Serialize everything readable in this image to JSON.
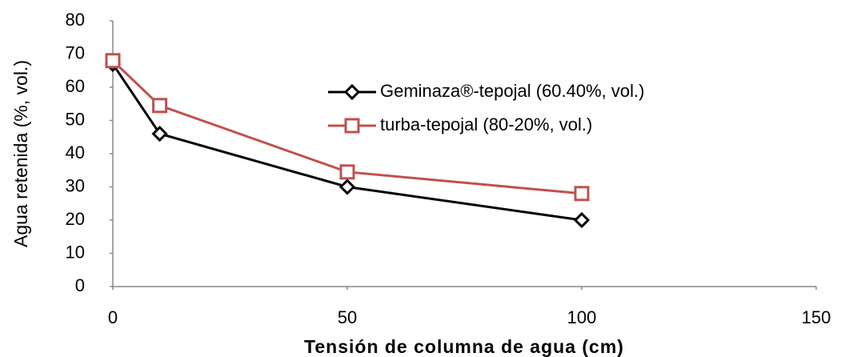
{
  "chart_data": {
    "type": "line",
    "x_label": "Tensión de columna de agua (cm)",
    "y_label": "Agua retenida (%, vol.)",
    "series": [
      {
        "name": "Geminaza®-tepojal (60.40%, vol.)",
        "color": "#000000",
        "marker": "diamond",
        "x": [
          0,
          10,
          50,
          100
        ],
        "values": [
          67,
          46,
          30,
          20
        ]
      },
      {
        "name": "turba-tepojal (80-20%, vol.)",
        "color": "#c0504d",
        "marker": "square",
        "x": [
          0,
          10,
          50,
          100
        ],
        "values": [
          68,
          54.5,
          34.5,
          28
        ]
      }
    ],
    "xlim": [
      0,
      150
    ],
    "xticks": [
      0,
      50,
      100,
      150
    ],
    "ylim": [
      0,
      80
    ],
    "yticks": [
      0,
      10,
      20,
      30,
      40,
      50,
      60,
      70,
      80
    ],
    "grid": false,
    "legend": "top-right"
  }
}
